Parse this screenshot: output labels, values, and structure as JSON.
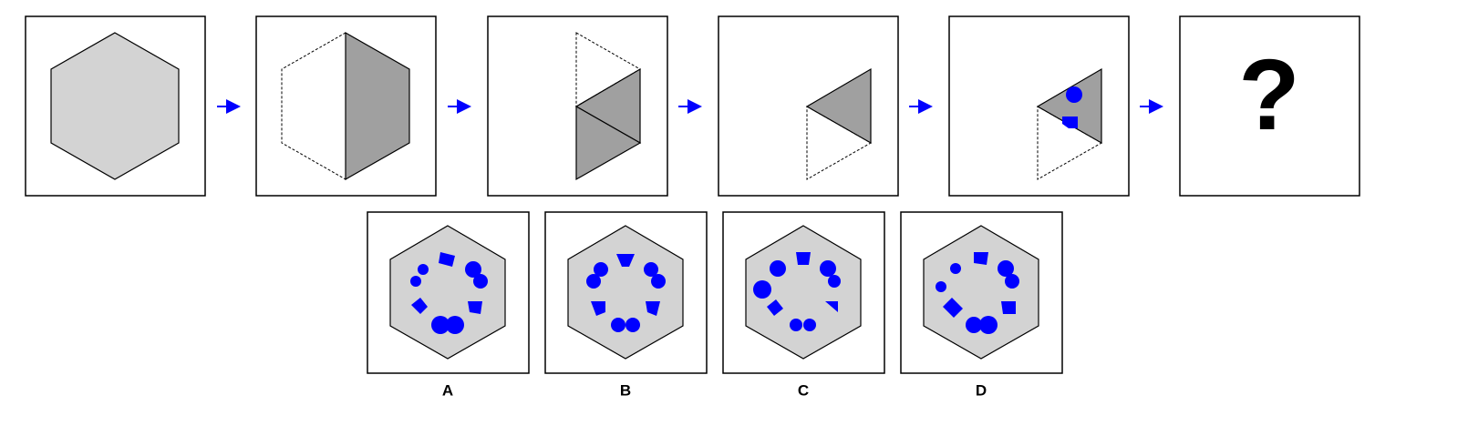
{
  "sequence": {
    "question_mark": "?"
  },
  "options": [
    {
      "label": "A"
    },
    {
      "label": "B"
    },
    {
      "label": "C"
    },
    {
      "label": "D"
    }
  ]
}
